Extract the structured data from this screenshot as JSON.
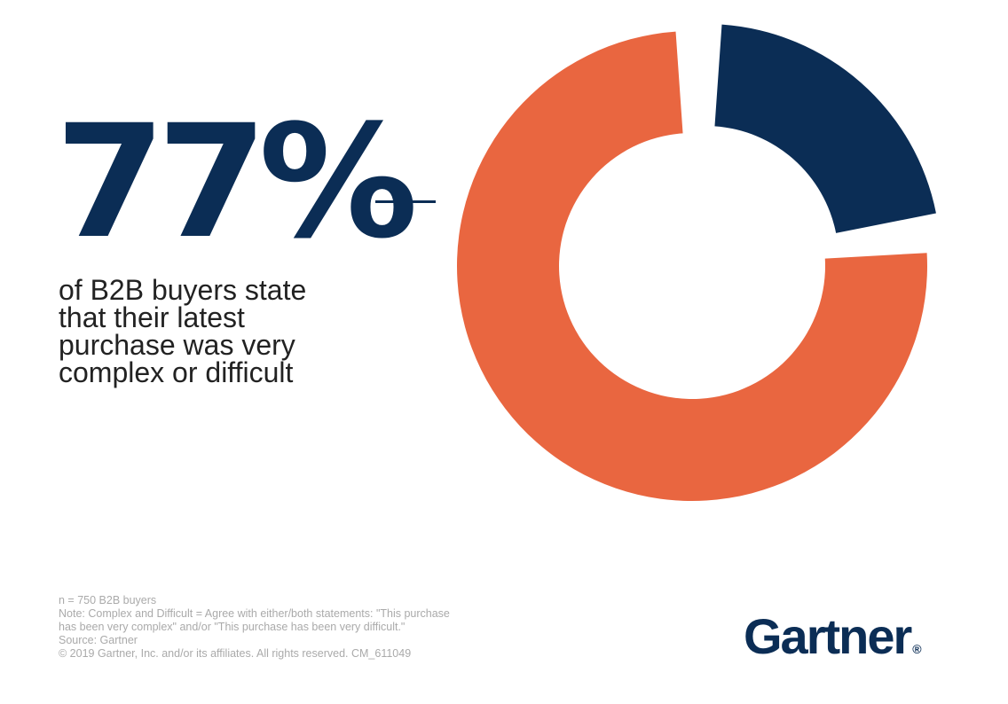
{
  "headline": {
    "value": "77%",
    "caption_lines": [
      "of B2B buyers state",
      "that their latest",
      "purchase was very",
      "complex or difficult"
    ]
  },
  "chart_data": {
    "type": "pie",
    "donut": true,
    "slices": [
      {
        "label": "complex or difficult",
        "value": 77,
        "color": "#e96640"
      },
      {
        "label": "",
        "value": 23,
        "color": "#0b2d55"
      }
    ]
  },
  "footnotes": [
    "n = 750 B2B buyers",
    "Note: Complex and Difficult = Agree with either/both statements: \"This purchase",
    "has been very complex\" and/or \"This purchase has been very difficult.\"",
    "Source: Gartner",
    "© 2019 Gartner, Inc. and/or its affiliates. All rights reserved. CM_611049"
  ],
  "logo": {
    "text": "Gartner",
    "mark": "®"
  },
  "colors": {
    "navy": "#0b2d55",
    "orange": "#e96640"
  }
}
